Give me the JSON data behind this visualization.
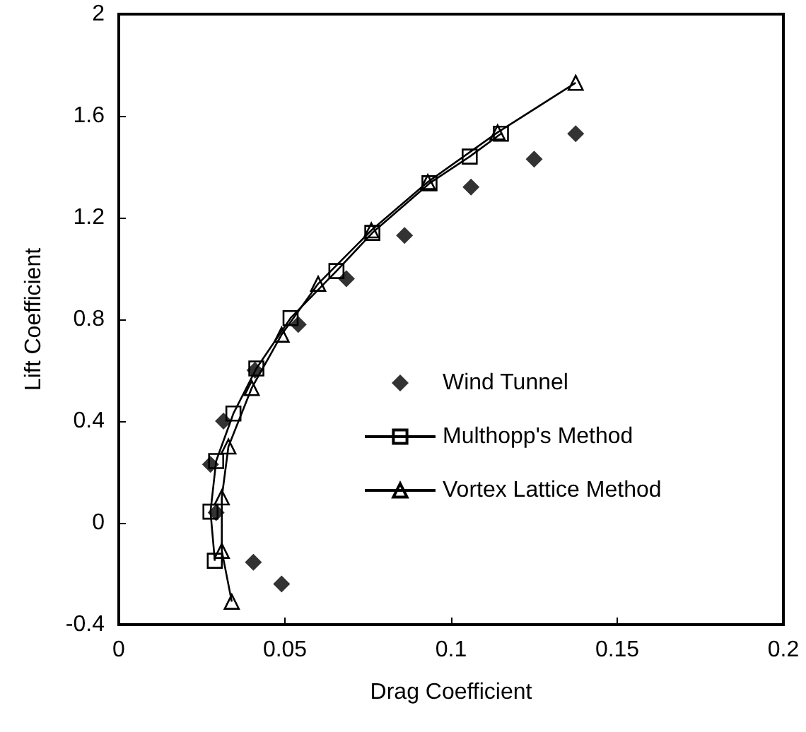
{
  "chart_data": {
    "type": "scatter",
    "xlabel": "Drag Coefficient",
    "ylabel": "Lift Coefficient",
    "xlim": [
      0,
      0.2
    ],
    "xticks": [
      0,
      0.05,
      0.1,
      0.15,
      0.2
    ],
    "ylim": [
      -0.4,
      2
    ],
    "yticks": [
      -0.4,
      0,
      0.4,
      0.8,
      1.2,
      1.6,
      2
    ],
    "grid": false,
    "legend": "right",
    "series": [
      {
        "name": "Wind Tunnel",
        "marker": "diamond",
        "color": "#000000",
        "x": [
          0.049,
          0.0405,
          0.0293,
          0.0276,
          0.0315,
          0.041,
          0.054,
          0.0685,
          0.086,
          0.106,
          0.125,
          0.1375
        ],
        "values": [
          -0.24,
          -0.155,
          0.04,
          0.23,
          0.4,
          0.6,
          0.78,
          0.96,
          1.13,
          1.32,
          1.43,
          1.53
        ]
      },
      {
        "name": "Multhopp's Method",
        "type": "line",
        "marker": "square",
        "color": "#000000",
        "x": [
          0.0289,
          0.0276,
          0.0293,
          0.0345,
          0.0414,
          0.0517,
          0.0655,
          0.0763,
          0.0935,
          0.1056,
          0.115
        ],
        "values": [
          -0.149,
          0.044,
          0.243,
          0.43,
          0.607,
          0.805,
          0.99,
          1.14,
          1.335,
          1.44,
          1.53
        ]
      },
      {
        "name": "Vortex Lattice Method",
        "type": "line",
        "marker": "triangle",
        "color": "#000000",
        "x": [
          0.034,
          0.031,
          0.031,
          0.033,
          0.04,
          0.049,
          0.06,
          0.076,
          0.093,
          0.114,
          0.1375
        ],
        "values": [
          -0.31,
          -0.11,
          0.1,
          0.3,
          0.53,
          0.74,
          0.94,
          1.15,
          1.34,
          1.535,
          1.73
        ]
      }
    ]
  }
}
